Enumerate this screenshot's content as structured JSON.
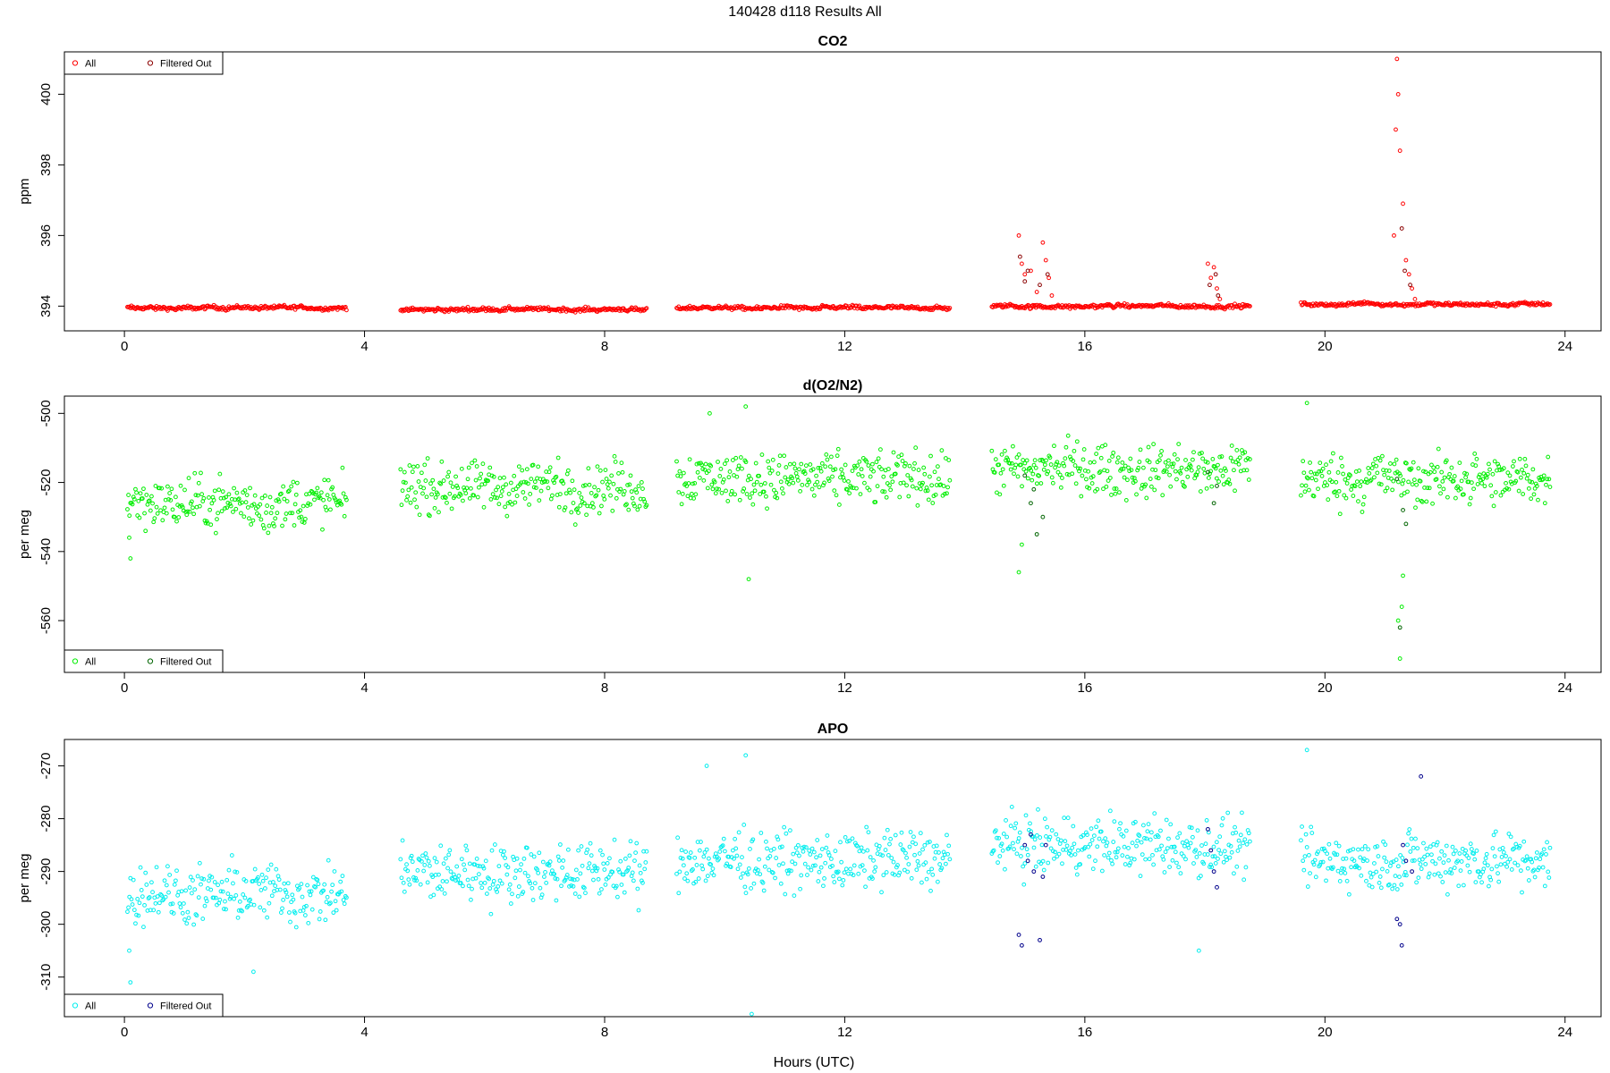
{
  "figure_title": "140428   d118   Results All",
  "xlabel": "Hours (UTC)",
  "colors": {
    "co2_all": "#ff0000",
    "co2_filtered": "#8b0000",
    "o2n2_all": "#00ee00",
    "o2n2_filtered": "#006400",
    "apo_all": "#00eeee",
    "apo_filtered": "#00008b"
  },
  "chart_data": [
    {
      "type": "scatter",
      "title": "CO2",
      "ylabel": "ppm",
      "xlim": [
        -1,
        24.6
      ],
      "ylim": [
        393.3,
        401.2
      ],
      "xticks": [
        "0",
        "4",
        "8",
        "12",
        "16",
        "20",
        "24"
      ],
      "yticks": [
        "394",
        "396",
        "398",
        "400"
      ],
      "legend_position": "top-left",
      "legend": [
        "All",
        "Filtered Out"
      ],
      "series": [
        {
          "name": "All",
          "color": "red",
          "segments": [
            {
              "x_start": 0.05,
              "x_end": 3.7,
              "y_base": 393.95,
              "noise": 0.12
            },
            {
              "x_start": 4.6,
              "x_end": 8.7,
              "y_base": 393.9,
              "noise": 0.12
            },
            {
              "x_start": 9.2,
              "x_end": 13.75,
              "y_base": 393.95,
              "noise": 0.12
            },
            {
              "x_start": 14.45,
              "x_end": 18.75,
              "y_base": 394.0,
              "noise": 0.12
            },
            {
              "x_start": 19.6,
              "x_end": 23.75,
              "y_base": 394.05,
              "noise": 0.12
            }
          ],
          "points": [
            {
              "x": 14.9,
              "y": 396.0
            },
            {
              "x": 14.95,
              "y": 395.2
            },
            {
              "x": 15.0,
              "y": 394.9
            },
            {
              "x": 15.1,
              "y": 395.0
            },
            {
              "x": 15.2,
              "y": 394.4
            },
            {
              "x": 15.3,
              "y": 395.8
            },
            {
              "x": 15.35,
              "y": 395.3
            },
            {
              "x": 15.4,
              "y": 394.8
            },
            {
              "x": 15.45,
              "y": 394.3
            },
            {
              "x": 18.05,
              "y": 395.2
            },
            {
              "x": 18.1,
              "y": 394.8
            },
            {
              "x": 18.15,
              "y": 395.1
            },
            {
              "x": 18.2,
              "y": 394.5
            },
            {
              "x": 18.25,
              "y": 394.2
            },
            {
              "x": 21.2,
              "y": 401.0
            },
            {
              "x": 21.22,
              "y": 400.0
            },
            {
              "x": 21.18,
              "y": 399.0
            },
            {
              "x": 21.25,
              "y": 398.4
            },
            {
              "x": 21.3,
              "y": 396.9
            },
            {
              "x": 21.15,
              "y": 396.0
            },
            {
              "x": 21.35,
              "y": 395.3
            },
            {
              "x": 21.4,
              "y": 394.9
            },
            {
              "x": 21.45,
              "y": 394.5
            },
            {
              "x": 21.5,
              "y": 394.2
            }
          ]
        },
        {
          "name": "Filtered Out",
          "color": "darkred",
          "points": [
            {
              "x": 14.92,
              "y": 395.4
            },
            {
              "x": 15.0,
              "y": 394.7
            },
            {
              "x": 15.05,
              "y": 395.0
            },
            {
              "x": 15.25,
              "y": 394.6
            },
            {
              "x": 15.38,
              "y": 394.9
            },
            {
              "x": 18.08,
              "y": 394.6
            },
            {
              "x": 18.18,
              "y": 394.9
            },
            {
              "x": 18.22,
              "y": 394.3
            },
            {
              "x": 21.28,
              "y": 396.2
            },
            {
              "x": 21.33,
              "y": 395.0
            },
            {
              "x": 21.42,
              "y": 394.6
            }
          ]
        }
      ]
    },
    {
      "type": "scatter",
      "title": "d(O2/N2)",
      "ylabel": "per meg",
      "xlim": [
        -1,
        24.6
      ],
      "ylim": [
        -575,
        -495
      ],
      "xticks": [
        "0",
        "4",
        "8",
        "12",
        "16",
        "20",
        "24"
      ],
      "yticks": [
        "-560",
        "-540",
        "-520",
        "-500"
      ],
      "legend_position": "bottom-left",
      "legend": [
        "All",
        "Filtered Out"
      ],
      "series": [
        {
          "name": "All",
          "color": "green",
          "segments": [
            {
              "x_start": 0.05,
              "x_end": 3.7,
              "y_base": -526,
              "noise": 6
            },
            {
              "x_start": 4.6,
              "x_end": 8.7,
              "y_base": -521,
              "noise": 6
            },
            {
              "x_start": 9.2,
              "x_end": 13.75,
              "y_base": -519,
              "noise": 6
            },
            {
              "x_start": 14.45,
              "x_end": 18.75,
              "y_base": -516,
              "noise": 6
            },
            {
              "x_start": 19.6,
              "x_end": 23.75,
              "y_base": -519,
              "noise": 6
            }
          ],
          "points": [
            {
              "x": 0.1,
              "y": -542
            },
            {
              "x": 0.08,
              "y": -536
            },
            {
              "x": 10.4,
              "y": -548
            },
            {
              "x": 9.75,
              "y": -500
            },
            {
              "x": 10.35,
              "y": -498
            },
            {
              "x": 19.7,
              "y": -497
            },
            {
              "x": 14.9,
              "y": -546
            },
            {
              "x": 14.95,
              "y": -538
            },
            {
              "x": 21.25,
              "y": -571
            },
            {
              "x": 21.28,
              "y": -556
            },
            {
              "x": 21.3,
              "y": -547
            },
            {
              "x": 21.22,
              "y": -560
            }
          ]
        },
        {
          "name": "Filtered Out",
          "color": "darkgreen",
          "points": [
            {
              "x": 15.0,
              "y": -518
            },
            {
              "x": 15.1,
              "y": -526
            },
            {
              "x": 15.2,
              "y": -535
            },
            {
              "x": 15.3,
              "y": -530
            },
            {
              "x": 15.15,
              "y": -522
            },
            {
              "x": 18.05,
              "y": -517
            },
            {
              "x": 18.15,
              "y": -526
            },
            {
              "x": 18.2,
              "y": -521
            },
            {
              "x": 21.2,
              "y": -519
            },
            {
              "x": 21.3,
              "y": -528
            },
            {
              "x": 21.35,
              "y": -532
            },
            {
              "x": 21.25,
              "y": -562
            }
          ]
        }
      ]
    },
    {
      "type": "scatter",
      "title": "APO",
      "ylabel": "per meg",
      "xlim": [
        -1,
        24.6
      ],
      "ylim": [
        -317.5,
        -265
      ],
      "xticks": [
        "0",
        "4",
        "8",
        "12",
        "16",
        "20",
        "24"
      ],
      "yticks": [
        "-310",
        "-300",
        "-290",
        "-280",
        "-270"
      ],
      "legend_position": "bottom-left",
      "legend": [
        "All",
        "Filtered Out"
      ],
      "series": [
        {
          "name": "All",
          "color": "cyan",
          "segments": [
            {
              "x_start": 0.05,
              "x_end": 3.7,
              "y_base": -294,
              "noise": 4.5
            },
            {
              "x_start": 4.6,
              "x_end": 8.7,
              "y_base": -290,
              "noise": 4.5
            },
            {
              "x_start": 9.2,
              "x_end": 13.75,
              "y_base": -288,
              "noise": 4.5
            },
            {
              "x_start": 14.45,
              "x_end": 18.75,
              "y_base": -285,
              "noise": 4.5
            },
            {
              "x_start": 19.6,
              "x_end": 23.75,
              "y_base": -288,
              "noise": 4.5
            }
          ],
          "points": [
            {
              "x": 0.1,
              "y": -311
            },
            {
              "x": 0.08,
              "y": -305
            },
            {
              "x": 10.45,
              "y": -317
            },
            {
              "x": 10.35,
              "y": -268
            },
            {
              "x": 19.7,
              "y": -267
            },
            {
              "x": 9.7,
              "y": -270
            },
            {
              "x": 2.15,
              "y": -309
            },
            {
              "x": 17.9,
              "y": -305
            }
          ]
        },
        {
          "name": "Filtered Out",
          "color": "darkblue",
          "points": [
            {
              "x": 14.9,
              "y": -302
            },
            {
              "x": 14.95,
              "y": -304
            },
            {
              "x": 15.0,
              "y": -285
            },
            {
              "x": 15.05,
              "y": -288
            },
            {
              "x": 15.1,
              "y": -283
            },
            {
              "x": 15.15,
              "y": -290
            },
            {
              "x": 15.3,
              "y": -291
            },
            {
              "x": 15.35,
              "y": -285
            },
            {
              "x": 15.25,
              "y": -303
            },
            {
              "x": 18.05,
              "y": -282
            },
            {
              "x": 18.1,
              "y": -286
            },
            {
              "x": 18.15,
              "y": -290
            },
            {
              "x": 18.2,
              "y": -293
            },
            {
              "x": 21.2,
              "y": -299
            },
            {
              "x": 21.25,
              "y": -300
            },
            {
              "x": 21.3,
              "y": -285
            },
            {
              "x": 21.35,
              "y": -288
            },
            {
              "x": 21.45,
              "y": -290
            },
            {
              "x": 21.6,
              "y": -272
            },
            {
              "x": 21.28,
              "y": -304
            }
          ]
        }
      ]
    }
  ]
}
